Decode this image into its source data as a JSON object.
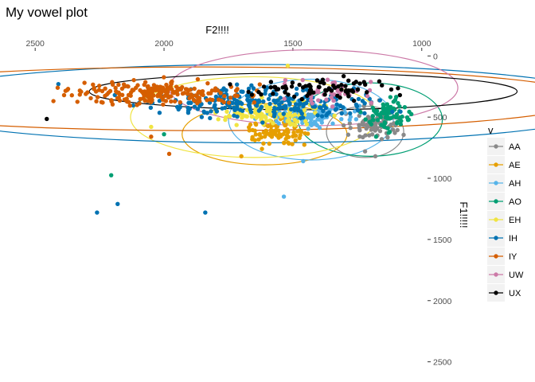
{
  "chart_data": {
    "type": "scatter",
    "title": "My vowel plot",
    "xlabel": "F2!!!!",
    "ylabel": "F1!!!!!",
    "x_axis": {
      "position": "top",
      "reversed": true,
      "lim": [
        2550,
        990
      ],
      "ticks": [
        2500,
        2000,
        1500,
        1000
      ]
    },
    "y_axis": {
      "position": "right",
      "reversed": true,
      "lim": [
        -80,
        2600
      ],
      "ticks": [
        0,
        500,
        1000,
        1500,
        2000,
        2500
      ]
    },
    "grid": false,
    "legend": {
      "title": "v",
      "position": "right",
      "entries": [
        "AA",
        "AE",
        "AH",
        "AO",
        "EH",
        "IH",
        "IY",
        "UW",
        "UX"
      ]
    },
    "series": [
      {
        "name": "AA",
        "color": "#898989",
        "n": 70,
        "center": [
          1180,
          550
        ],
        "spread": [
          60,
          90
        ],
        "outliers": [
          [
            1220,
            780
          ],
          [
            1180,
            820
          ]
        ],
        "ellipse": {
          "cx": 1220,
          "cy": 620,
          "rx": 150,
          "ry": 210
        }
      },
      {
        "name": "AE",
        "color": "#E69F00",
        "n": 90,
        "center": [
          1560,
          610
        ],
        "spread": [
          80,
          70
        ],
        "outliers": [
          [
            1700,
            820
          ],
          [
            1620,
            760
          ]
        ],
        "ellipse": {
          "cx": 1610,
          "cy": 640,
          "rx": 320,
          "ry": 250
        }
      },
      {
        "name": "AH",
        "color": "#56B4E9",
        "n": 100,
        "center": [
          1430,
          480
        ],
        "spread": [
          110,
          70
        ],
        "outliers": [
          [
            1535,
            1150
          ],
          [
            1460,
            860
          ]
        ],
        "ellipse": {
          "cx": 1430,
          "cy": 520,
          "rx": 320,
          "ry": 330
        }
      },
      {
        "name": "AO",
        "color": "#009E73",
        "n": 80,
        "center": [
          1130,
          480
        ],
        "spread": [
          60,
          90
        ],
        "outliers": [
          [
            2205,
            975
          ],
          [
            2000,
            640
          ]
        ],
        "ellipse": {
          "cx": 1200,
          "cy": 520,
          "rx": 280,
          "ry": 300
        }
      },
      {
        "name": "EH",
        "color": "#F0E442",
        "n": 110,
        "center": [
          1590,
          470
        ],
        "spread": [
          130,
          80
        ],
        "outliers": [
          [
            1520,
            80
          ],
          [
            2050,
            580
          ]
        ],
        "ellipse": {
          "cx": 1650,
          "cy": 500,
          "rx": 480,
          "ry": 330
        }
      },
      {
        "name": "IH",
        "color": "#0072B2",
        "n": 240,
        "center": [
          1620,
          380
        ],
        "spread": [
          310,
          90
        ],
        "outliers": [
          [
            2260,
            1280
          ],
          [
            2180,
            1210
          ],
          [
            1840,
            1280
          ],
          [
            2410,
            230
          ]
        ],
        "ellipse": {
          "cx": 1630,
          "cy": 390,
          "rx": 1410,
          "ry": 320
        }
      },
      {
        "name": "IY",
        "color": "#D55E00",
        "n": 220,
        "center": [
          2030,
          310
        ],
        "spread": [
          250,
          70
        ],
        "outliers": [
          [
            1980,
            800
          ],
          [
            2050,
            660
          ]
        ],
        "ellipse": {
          "cx": 1840,
          "cy": 350,
          "rx": 1500,
          "ry": 260
        }
      },
      {
        "name": "UW",
        "color": "#CC79A7",
        "n": 40,
        "center": [
          1350,
          290
        ],
        "spread": [
          120,
          80
        ],
        "outliers": [],
        "ellipse": {
          "cx": 1420,
          "cy": 260,
          "rx": 560,
          "ry": 310
        }
      },
      {
        "name": "UX",
        "color": "#000000",
        "n": 80,
        "center": [
          1410,
          270
        ],
        "spread": [
          200,
          60
        ],
        "outliers": [
          [
            2455,
            515
          ]
        ],
        "ellipse": {
          "cx": 1460,
          "cy": 290,
          "rx": 830,
          "ry": 150
        }
      }
    ]
  }
}
